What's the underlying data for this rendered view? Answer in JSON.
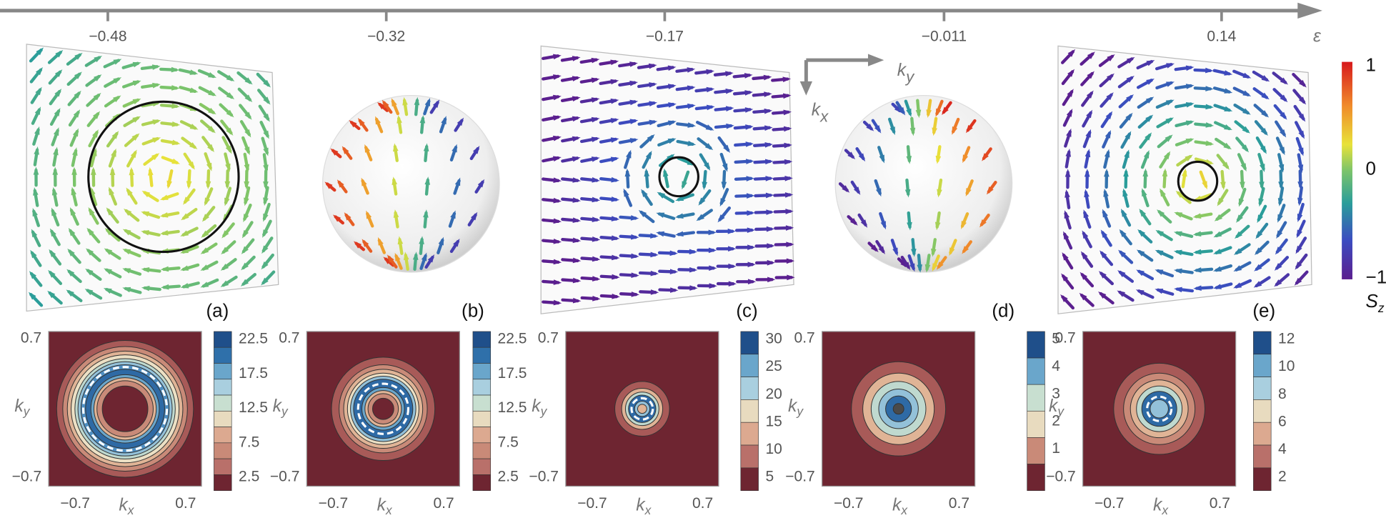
{
  "epsilon_axis": {
    "label": "ε",
    "ticks": [
      "−0.48",
      "−0.32",
      "−0.17",
      "−0.011",
      "0.14"
    ]
  },
  "frame_axes": {
    "ky": {
      "base": "k",
      "sub": "y"
    },
    "kx": {
      "base": "k",
      "sub": "x"
    }
  },
  "spin_colorbar": {
    "ticks": [
      "1",
      "0",
      "−1"
    ],
    "label": {
      "base": "S",
      "sub": "z"
    }
  },
  "panels": [
    {
      "label": "(a)",
      "contour": {
        "yticks": [
          "0.7",
          "−0.7"
        ],
        "xticks": [
          "−0.7",
          "0.7"
        ],
        "xlabel": {
          "base": "k",
          "sub": "x"
        },
        "ylabel": {
          "base": "k",
          "sub": "y"
        },
        "colorbar_ticks": [
          "22.5",
          "17.5",
          "12.5",
          "7.5",
          "2.5"
        ]
      }
    },
    {
      "label": "(b)",
      "contour": {
        "yticks": [
          "0.7",
          "−0.7"
        ],
        "xticks": [
          "−0.7",
          "0.7"
        ],
        "xlabel": {
          "base": "k",
          "sub": "x"
        },
        "ylabel": {
          "base": "k",
          "sub": "y"
        },
        "colorbar_ticks": [
          "22.5",
          "17.5",
          "12.5",
          "7.5",
          "2.5"
        ]
      }
    },
    {
      "label": "(c)",
      "contour": {
        "yticks": [
          "0.7",
          "−0.7"
        ],
        "xticks": [
          "−0.7",
          "0.7"
        ],
        "xlabel": {
          "base": "k",
          "sub": "x"
        },
        "ylabel": {
          "base": "k",
          "sub": "y"
        },
        "colorbar_ticks": [
          "30",
          "25",
          "20",
          "15",
          "10",
          "5"
        ]
      }
    },
    {
      "label": "(d)",
      "contour": {
        "yticks": [
          "0.7",
          "−0.7"
        ],
        "xticks": [
          "−0.7",
          "0.7"
        ],
        "xlabel": {
          "base": "k",
          "sub": "x"
        },
        "ylabel": {
          "base": "k",
          "sub": "y"
        },
        "colorbar_ticks": [
          "5",
          "4",
          "3",
          "2",
          "1"
        ]
      }
    },
    {
      "label": "(e)",
      "contour": {
        "yticks": [
          "0.7",
          "−0.7"
        ],
        "xticks": [
          "−0.7",
          "0.7"
        ],
        "xlabel": {
          "base": "k",
          "sub": "x"
        },
        "ylabel": {
          "base": "k",
          "sub": "y"
        },
        "colorbar_ticks": [
          "12",
          "10",
          "8",
          "6",
          "4",
          "2"
        ]
      }
    }
  ]
}
